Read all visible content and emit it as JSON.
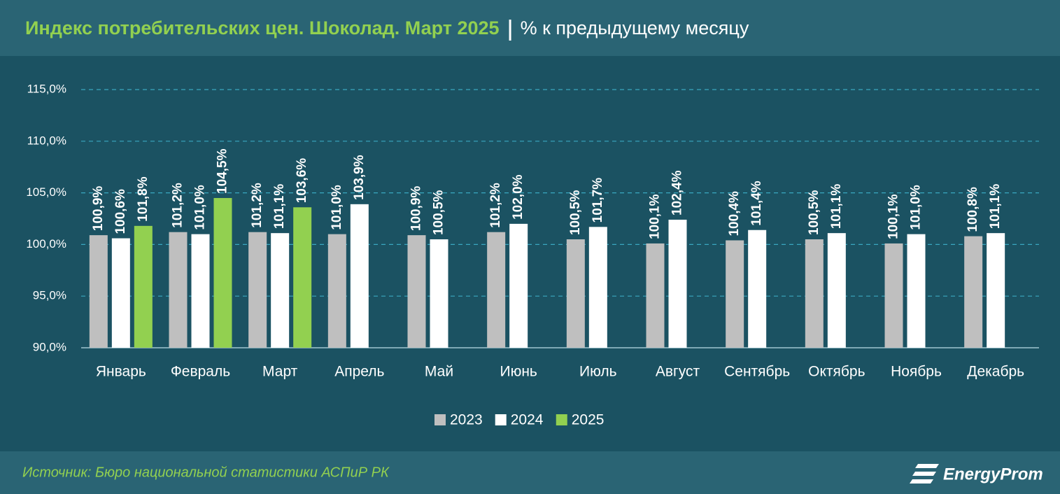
{
  "chart_data": {
    "type": "bar",
    "title": "Индекс потребительских цен. Шоколад. Март 2025",
    "subtitle": "% к предыдущему месяцу",
    "source": "Источник: Бюро национальной статистики АСПиР РК",
    "brand": "EnergyProm",
    "categories": [
      "Январь",
      "Февраль",
      "Март",
      "Апрель",
      "Май",
      "Июнь",
      "Июль",
      "Август",
      "Сентябрь",
      "Октябрь",
      "Ноябрь",
      "Декабрь"
    ],
    "series": [
      {
        "name": "2023",
        "color": "#bfbfbf",
        "values": [
          100.9,
          101.2,
          101.2,
          101.0,
          100.9,
          101.2,
          100.5,
          100.1,
          100.4,
          100.5,
          100.1,
          100.8
        ],
        "value_labels": [
          "100,9%",
          "101,2%",
          "101,2%",
          "101,0%",
          "100,9%",
          "101,2%",
          "100,5%",
          "100,1%",
          "100,4%",
          "100,5%",
          "100,1%",
          "100,8%"
        ]
      },
      {
        "name": "2024",
        "color": "#ffffff",
        "values": [
          100.6,
          101.0,
          101.1,
          103.9,
          100.5,
          102.0,
          101.7,
          102.4,
          101.4,
          101.1,
          101.0,
          101.1
        ],
        "value_labels": [
          "100,6%",
          "101,0%",
          "101,1%",
          "103,9%",
          "100,5%",
          "102,0%",
          "101,7%",
          "102,4%",
          "101,4%",
          "101,1%",
          "101,0%",
          "101,1%"
        ]
      },
      {
        "name": "2025",
        "color": "#92d050",
        "values": [
          101.8,
          104.5,
          103.6,
          null,
          null,
          null,
          null,
          null,
          null,
          null,
          null,
          null
        ],
        "value_labels": [
          "101,8%",
          "104,5%",
          "103,6%",
          null,
          null,
          null,
          null,
          null,
          null,
          null,
          null,
          null
        ]
      }
    ],
    "ylim": [
      90,
      115
    ],
    "yticks": [
      {
        "value": 90,
        "label": "90,0%"
      },
      {
        "value": 95,
        "label": "95,0%"
      },
      {
        "value": 100,
        "label": "100,0%"
      },
      {
        "value": 105,
        "label": "105,0%"
      },
      {
        "value": 110,
        "label": "110,0%"
      },
      {
        "value": 115,
        "label": "115,0%"
      }
    ],
    "grid": true
  }
}
